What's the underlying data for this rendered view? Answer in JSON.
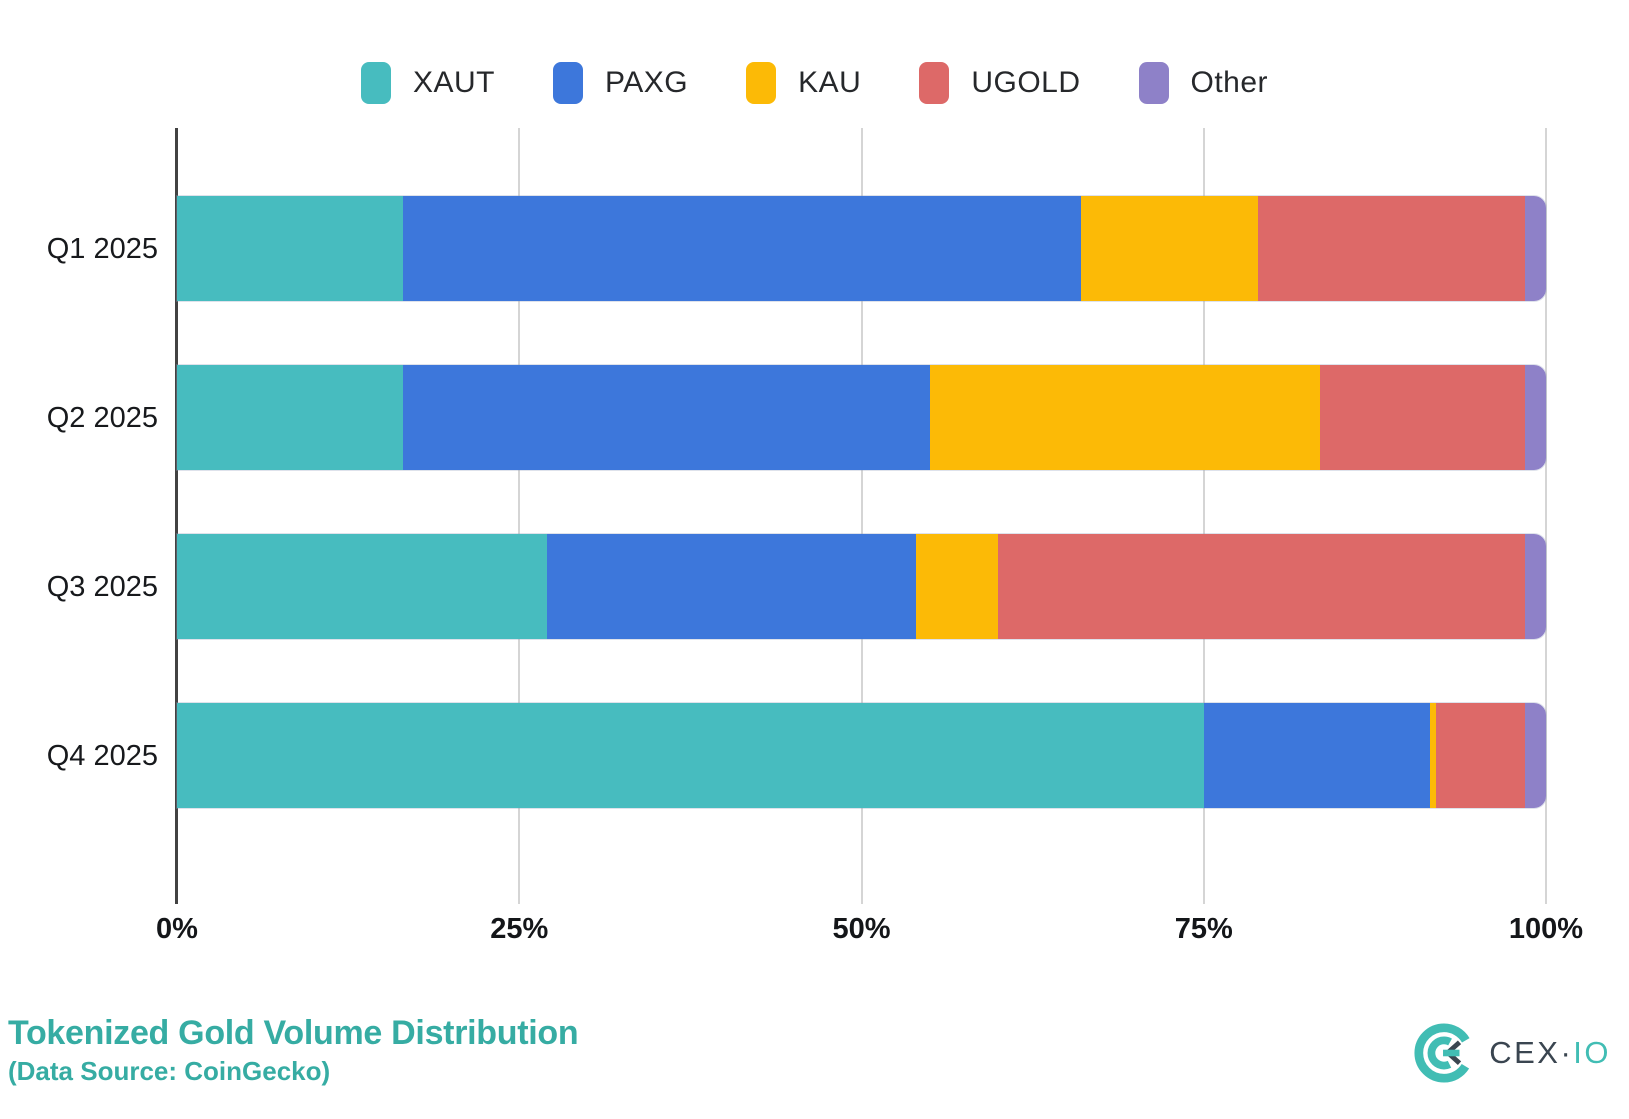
{
  "title": "Tokenized Gold Volume Distribution",
  "subtitle": "(Data Source: CoinGecko)",
  "brand": {
    "primary": "CEX",
    "separator": "·",
    "secondary": "IO"
  },
  "colors": {
    "XAUT": "#47BCBF",
    "PAXG": "#3D77DB",
    "KAU": "#FCBA06",
    "UGOLD": "#DD6968",
    "Other": "#8E81C8",
    "title_teal": "#36ACA3",
    "brand_teal": "#41BDB4",
    "brand_dark": "#3A4550",
    "grid": "#D5D5D5",
    "axis": "#424242"
  },
  "chart_data": {
    "type": "bar",
    "orientation": "horizontal",
    "stacked": true,
    "unit": "percent",
    "title": "Tokenized Gold Volume Distribution",
    "categories": [
      "Q1 2025",
      "Q2 2025",
      "Q3 2025",
      "Q4 2025"
    ],
    "series": [
      {
        "name": "XAUT",
        "values": [
          16.5,
          16.5,
          27.0,
          75.0
        ]
      },
      {
        "name": "PAXG",
        "values": [
          49.5,
          38.5,
          27.0,
          16.5
        ]
      },
      {
        "name": "KAU",
        "values": [
          13.0,
          28.5,
          6.0,
          0.5
        ]
      },
      {
        "name": "UGOLD",
        "values": [
          19.5,
          15.0,
          38.5,
          6.5
        ]
      },
      {
        "name": "Other",
        "values": [
          1.5,
          1.5,
          1.5,
          1.5
        ]
      }
    ],
    "x_ticks": [
      "0%",
      "25%",
      "50%",
      "75%",
      "100%"
    ],
    "xlim": [
      0,
      100
    ],
    "legend_position": "top",
    "legend_entries": [
      "XAUT",
      "PAXG",
      "KAU",
      "UGOLD",
      "Other"
    ],
    "grid": true
  }
}
